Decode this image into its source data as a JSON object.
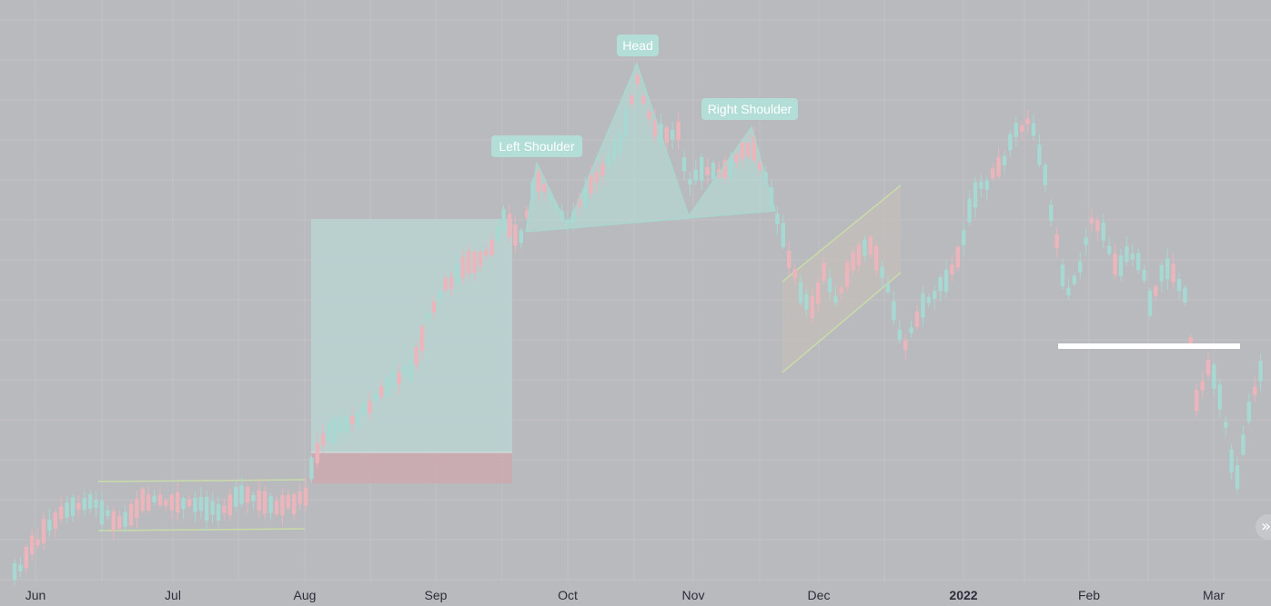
{
  "chart_data": {
    "type": "candlestick",
    "x_tick_labels": [
      "Jun",
      "Jul",
      "Aug",
      "Sep",
      "Oct",
      "Nov",
      "Dec",
      "2022",
      "Feb",
      "Mar"
    ],
    "x_tick_bold": [
      false,
      false,
      false,
      false,
      false,
      false,
      false,
      true,
      false,
      false
    ],
    "grid": true,
    "colors": {
      "background": "#b9babe",
      "grid": "#c2c3c7",
      "up": "#a8d8d2",
      "down": "#ebb5bb",
      "pattern_fill": "#b6d6d2",
      "pattern_line": "#a9d6cf",
      "label_bg": "#b3ded8",
      "range_line": "#c9dba9",
      "position_target": "#b9d3d0",
      "position_stop": "#cbaab0",
      "support_line": "#ffffff"
    },
    "annotations": {
      "head_and_shoulders": {
        "labels": [
          "Left Shoulder",
          "Head",
          "Right Shoulder"
        ]
      }
    }
  },
  "ui": {
    "scroll_icon": "double-chevron-right-icon",
    "scroll_glyph": "»"
  }
}
